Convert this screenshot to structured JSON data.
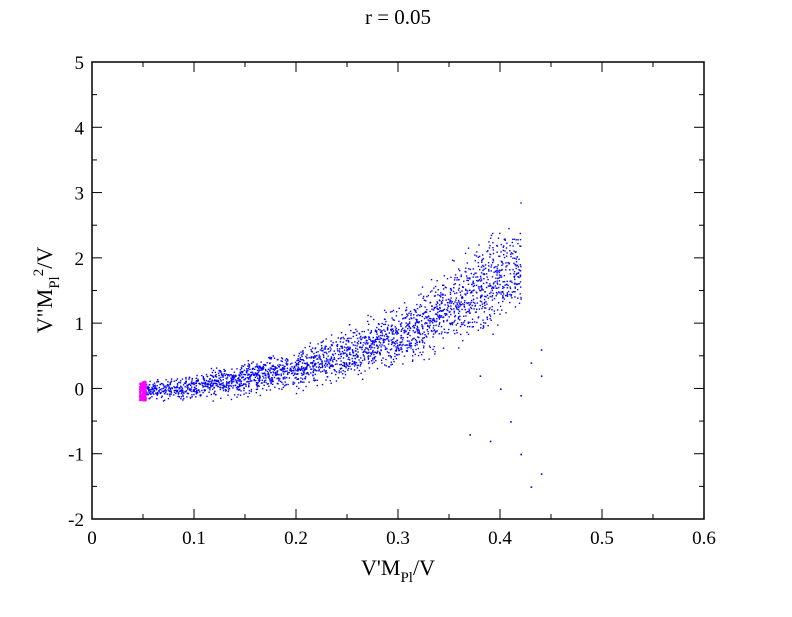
{
  "chart_data": {
    "type": "scatter",
    "title": "r = 0.05",
    "xlabel": {
      "main": "V'M",
      "sub": "Pl",
      "tail": "/V"
    },
    "ylabel": {
      "main": "V\"M",
      "sub": "Pl",
      "sup": "2",
      "tail": "/V"
    },
    "xlim": [
      0,
      0.6
    ],
    "ylim": [
      -2,
      5
    ],
    "x_ticks": [
      0,
      0.1,
      0.2,
      0.3,
      0.4,
      0.5,
      0.6
    ],
    "x_tick_labels": [
      "0",
      "0.1",
      "0.2",
      "0.3",
      "0.4",
      "0.5",
      "0.6"
    ],
    "y_ticks": [
      -2,
      -1,
      0,
      1,
      2,
      3,
      4,
      5
    ],
    "y_tick_labels": [
      "-2",
      "-1",
      "0",
      "1",
      "2",
      "3",
      "4",
      "5"
    ],
    "grid": false,
    "series": [
      {
        "color": "#0000ff",
        "region": {
          "x_range": [
            0.05,
            0.42
          ],
          "lower_curve": {
            "x": [
              0.05,
              0.1,
              0.2,
              0.3,
              0.38,
              0.42
            ],
            "y": [
              -0.2,
              -0.25,
              -0.1,
              0.2,
              0.6,
              0.9
            ]
          },
          "upper_curve": {
            "x": [
              0.05,
              0.1,
              0.2,
              0.3,
              0.38,
              0.42
            ],
            "y": [
              0.15,
              0.3,
              0.7,
              1.4,
              2.4,
              3.0
            ]
          }
        },
        "outliers": [
          [
            0.43,
            0.4
          ],
          [
            0.44,
            0.2
          ],
          [
            0.42,
            -0.1
          ],
          [
            0.41,
            -0.5
          ],
          [
            0.39,
            -0.8
          ],
          [
            0.42,
            -1.0
          ],
          [
            0.43,
            -1.5
          ],
          [
            0.44,
            -1.3
          ],
          [
            0.37,
            -0.7
          ],
          [
            0.4,
            0.0
          ],
          [
            0.38,
            0.2
          ],
          [
            0.44,
            0.6
          ]
        ]
      },
      {
        "color": "#ff00ff",
        "region": {
          "x_range": [
            0.046,
            0.052
          ],
          "y_range": [
            -0.18,
            0.12
          ]
        }
      }
    ]
  }
}
